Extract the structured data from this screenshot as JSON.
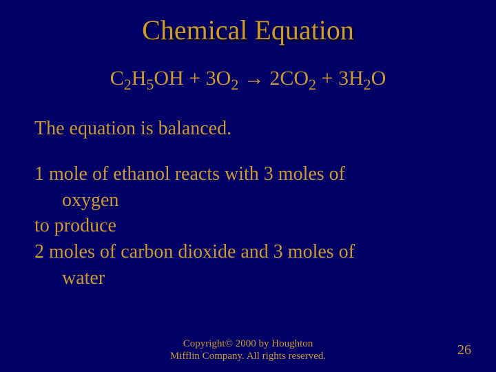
{
  "colors": {
    "background": "#000066",
    "text": "#cc9933",
    "title_shadow": "rgba(0,0,0,0.8)"
  },
  "typography": {
    "family": "Times New Roman",
    "title_size_pt": 40,
    "equation_size_pt": 30,
    "body_size_pt": 28,
    "footer_size_pt": 15,
    "pagenum_size_pt": 20,
    "sub_size_pt": 22
  },
  "title": "Chemical Equation",
  "equation": {
    "reactant1": {
      "formula": "C2H5OH",
      "parts": [
        "C",
        "2",
        "H",
        "5",
        "OH"
      ]
    },
    "plus1": "  +  ",
    "reactant2_coef": "3",
    "reactant2": {
      "formula": "O2",
      "parts": [
        "O",
        "2"
      ]
    },
    "arrow": " → ",
    "product1_coef": "2",
    "product1": {
      "formula": "CO2",
      "parts": [
        "CO",
        "2"
      ]
    },
    "plus2": "  +  ",
    "product2_coef": "3",
    "product2": {
      "formula": "H2O",
      "parts": [
        "H",
        "2",
        "O"
      ]
    }
  },
  "balanced_text": "The equation is balanced.",
  "stoich": {
    "line1a": "1 mole of ethanol reacts with 3 moles of",
    "line1b": "oxygen",
    "line2": "to produce",
    "line3a": "2 moles of carbon dioxide and 3 moles of",
    "line3b": "water"
  },
  "footer": {
    "line1": "Copyright© 2000 by Houghton",
    "line2": "Mifflin Company. All rights reserved."
  },
  "page_number": "26"
}
